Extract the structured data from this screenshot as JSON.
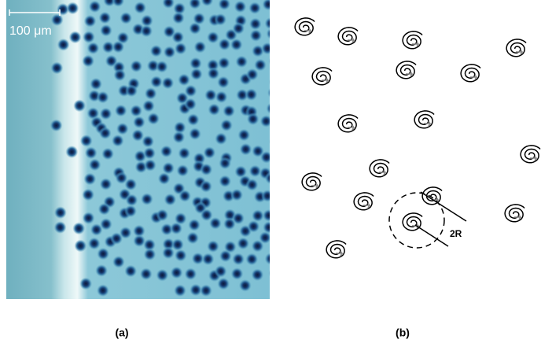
{
  "panel_a": {
    "scale_label": "100 μm",
    "caption": "(a)"
  },
  "panel_b": {
    "radius_label": "2R",
    "caption": "(b)"
  }
}
